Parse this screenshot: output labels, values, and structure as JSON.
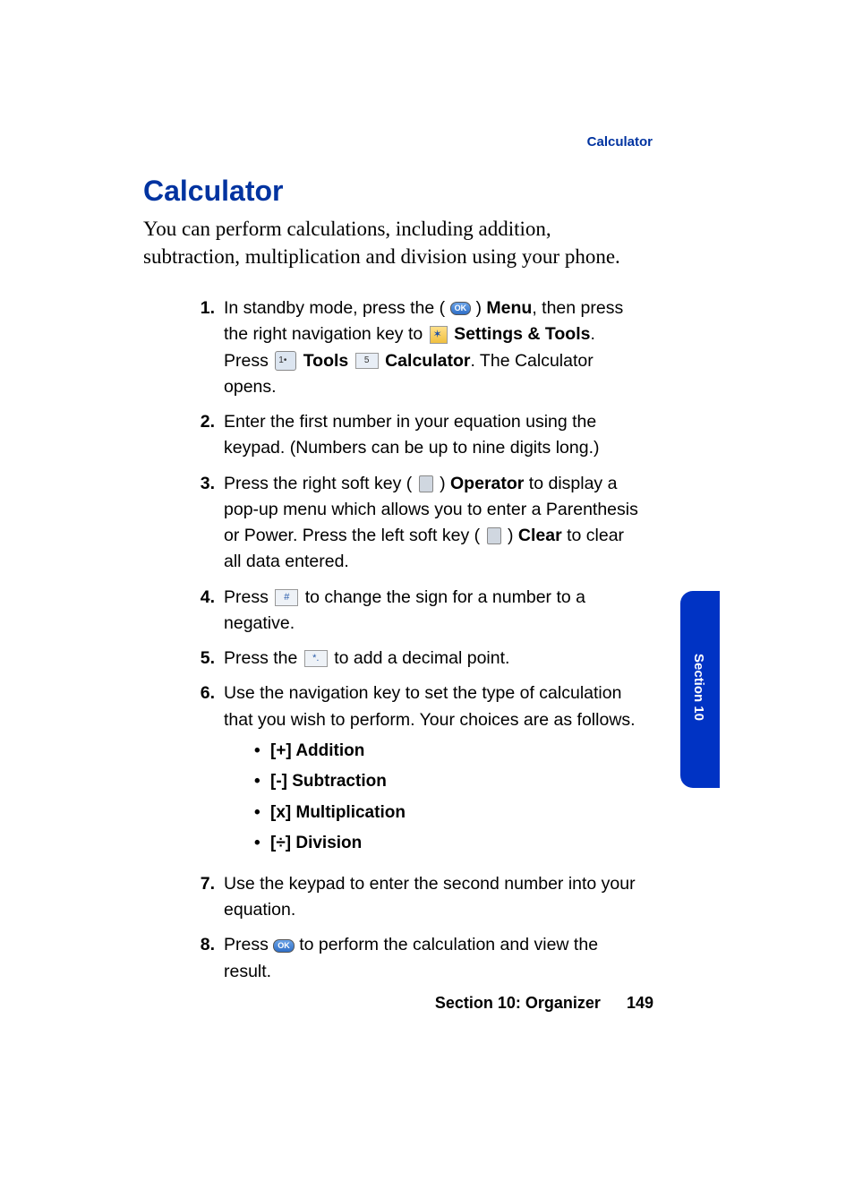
{
  "colors": {
    "brand_blue": "#0033a0",
    "tab_blue": "#0033c4",
    "text_black": "#000000",
    "background": "#ffffff"
  },
  "typography": {
    "title_fontsize_pt": 24,
    "body_serif_fontsize_pt": 17,
    "step_fontsize_pt": 15,
    "header_label_fontsize_pt": 11,
    "footer_fontsize_pt": 14
  },
  "header": {
    "running_head": "Calculator"
  },
  "title": "Calculator",
  "intro": "You can perform calculations, including addition, subtraction, multiplication and division using your phone.",
  "steps": [
    {
      "num": "1.",
      "parts": {
        "a": "In standby mode, press the (",
        "ok1": "OK",
        "b": ") ",
        "menu": "Menu",
        "c": ", then press the right navigation key to ",
        "settings_tools": "Settings & Tools",
        "d": ". Press ",
        "tools": "Tools",
        "num5_label": "5",
        "calculator": "Calculator",
        "e": ". The Calculator opens."
      }
    },
    {
      "num": "2.",
      "text": "Enter the first number in your equation using the keypad. (Numbers can be up to nine digits long.)"
    },
    {
      "num": "3.",
      "parts": {
        "a": "Press the right soft key (",
        "b": ") ",
        "operator": "Operator",
        "c": " to display a pop-up menu which allows you to enter a Parenthesis or Power. Press the left soft key (",
        "d": ") ",
        "clear": "Clear",
        "e": " to clear all data entered."
      }
    },
    {
      "num": "4.",
      "parts": {
        "a": "Press ",
        "hash_label": "#",
        "b": " to change the sign for a number to a negative."
      }
    },
    {
      "num": "5.",
      "parts": {
        "a": "Press the ",
        "star_label": "*.",
        "b": " to add a decimal point."
      }
    },
    {
      "num": "6.",
      "intro": "Use the navigation key to set the type of calculation that you wish to perform. Your choices are as follows.",
      "bullets": [
        "[+] Addition",
        "[-] Subtraction",
        "[x] Multiplication",
        "[÷] Division"
      ]
    },
    {
      "num": "7.",
      "text": "Use the keypad to enter the second number into your equation."
    },
    {
      "num": "8.",
      "parts": {
        "a": "Press ",
        "ok2": "OK",
        "b": " to perform the calculation and view the result."
      }
    }
  ],
  "section_tab": "Section 10",
  "footer": {
    "section": "Section 10: Organizer",
    "page": "149"
  }
}
